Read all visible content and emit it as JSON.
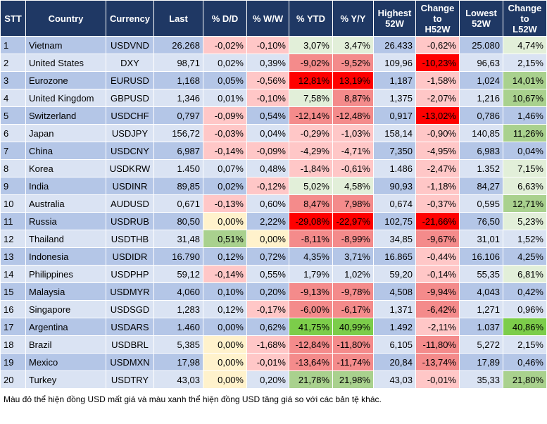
{
  "table": {
    "header": [
      "STT",
      "Country",
      "Currency",
      "Last",
      "% D/D",
      "% W/W",
      "% YTD",
      "% Y/Y",
      "Highest\n52W",
      "Change\nto\nH52W",
      "Lowest\n52W",
      "Change\nto\nL52W"
    ],
    "rows": [
      [
        "1",
        "Vietnam",
        "USDVND",
        "26.268",
        "-0,02%",
        "-0,10%",
        "3,07%",
        "3,47%",
        "26.433",
        "-0,62%",
        "25.080",
        "4,74%"
      ],
      [
        "2",
        "United States",
        "DXY",
        "98,71",
        "0,02%",
        "0,39%",
        "-9,02%",
        "-9,52%",
        "109,96",
        "-10,23%",
        "96,63",
        "2,15%"
      ],
      [
        "3",
        "Eurozone",
        "EURUSD",
        "1,168",
        "0,05%",
        "-0,56%",
        "12,81%",
        "13,19%",
        "1,187",
        "-1,58%",
        "1,024",
        "14,01%"
      ],
      [
        "4",
        "United Kingdom",
        "GBPUSD",
        "1,346",
        "0,01%",
        "-0,10%",
        "7,58%",
        "8,87%",
        "1,375",
        "-2,07%",
        "1,216",
        "10,67%"
      ],
      [
        "5",
        "Switzerland",
        "USDCHF",
        "0,797",
        "-0,09%",
        "0,54%",
        "-12,14%",
        "-12,48%",
        "0,917",
        "-13,02%",
        "0,786",
        "1,46%"
      ],
      [
        "6",
        "Japan",
        "USDJPY",
        "156,72",
        "-0,03%",
        "0,04%",
        "-0,29%",
        "-1,03%",
        "158,14",
        "-0,90%",
        "140,85",
        "11,26%"
      ],
      [
        "7",
        "China",
        "USDCNY",
        "6,987",
        "-0,14%",
        "-0,09%",
        "-4,29%",
        "-4,71%",
        "7,350",
        "-4,95%",
        "6,983",
        "0,04%"
      ],
      [
        "8",
        "Korea",
        "USDKRW",
        "1.450",
        "0,07%",
        "0,48%",
        "-1,84%",
        "-0,61%",
        "1.486",
        "-2,47%",
        "1.352",
        "7,15%"
      ],
      [
        "9",
        "India",
        "USDINR",
        "89,85",
        "0,02%",
        "-0,12%",
        "5,02%",
        "4,58%",
        "90,93",
        "-1,18%",
        "84,27",
        "6,63%"
      ],
      [
        "10",
        "Australia",
        "AUDUSD",
        "0,671",
        "-0,13%",
        "0,60%",
        "8,47%",
        "7,98%",
        "0,674",
        "-0,37%",
        "0,595",
        "12,71%"
      ],
      [
        "11",
        "Russia",
        "USDRUB",
        "80,50",
        "0,00%",
        "2,22%",
        "-29,08%",
        "-22,97%",
        "102,75",
        "-21,66%",
        "76,50",
        "5,23%"
      ],
      [
        "12",
        "Thailand",
        "USDTHB",
        "31,48",
        "0,51%",
        "0,00%",
        "-8,11%",
        "-8,99%",
        "34,85",
        "-9,67%",
        "31,01",
        "1,52%"
      ],
      [
        "13",
        "Indonesia",
        "USDIDR",
        "16.790",
        "0,12%",
        "0,72%",
        "4,35%",
        "3,71%",
        "16.865",
        "-0,44%",
        "16.106",
        "4,25%"
      ],
      [
        "14",
        "Philippines",
        "USDPHP",
        "59,12",
        "-0,14%",
        "0,55%",
        "1,79%",
        "1,02%",
        "59,20",
        "-0,14%",
        "55,35",
        "6,81%"
      ],
      [
        "15",
        "Malaysia",
        "USDMYR",
        "4,060",
        "0,10%",
        "0,20%",
        "-9,13%",
        "-9,78%",
        "4,508",
        "-9,94%",
        "4,043",
        "0,42%"
      ],
      [
        "16",
        "Singapore",
        "USDSGD",
        "1,283",
        "0,12%",
        "-0,17%",
        "-6,00%",
        "-6,17%",
        "1,371",
        "-6,42%",
        "1,271",
        "0,96%"
      ],
      [
        "17",
        "Argentina",
        "USDARS",
        "1.460",
        "0,00%",
        "0,62%",
        "41,75%",
        "40,99%",
        "1.492",
        "-2,11%",
        "1.037",
        "40,86%"
      ],
      [
        "18",
        "Brazil",
        "USDBRL",
        "5,385",
        "0,00%",
        "-1,68%",
        "-12,84%",
        "-11,80%",
        "6,105",
        "-11,80%",
        "5,272",
        "2,15%"
      ],
      [
        "19",
        "Mexico",
        "USDMXN",
        "17,98",
        "0,00%",
        "-0,01%",
        "-13,64%",
        "-11,74%",
        "20,84",
        "-13,74%",
        "17,89",
        "0,46%"
      ],
      [
        "20",
        "Turkey",
        "USDTRY",
        "43,03",
        "0,00%",
        "0,20%",
        "21,78%",
        "21,98%",
        "43,03",
        "-0,01%",
        "35,33",
        "21,80%"
      ]
    ]
  },
  "footnote": "Màu đỏ thể hiện đồng USD mất giá và màu xanh thể hiện đồng USD tăng giá so với các bản tệ khác."
}
